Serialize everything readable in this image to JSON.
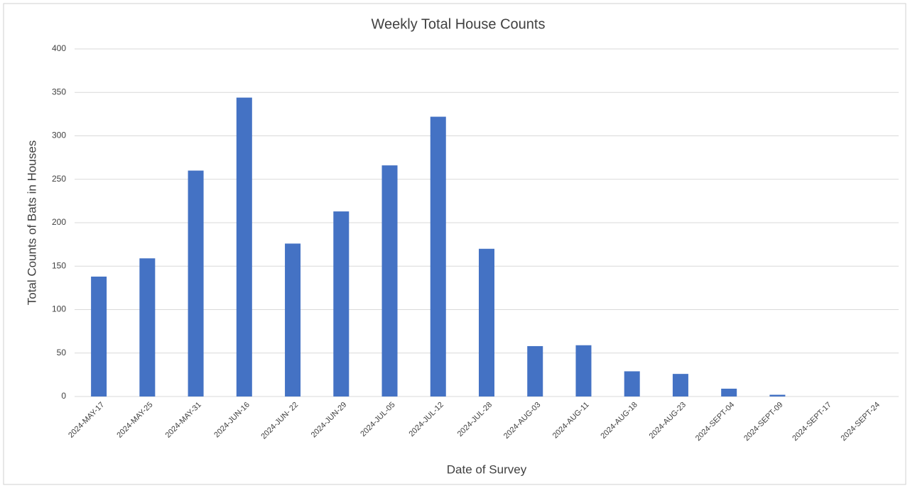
{
  "chart_data": {
    "type": "bar",
    "title": "Weekly Total House Counts",
    "x_label": "Date of Survey",
    "y_label": "Total Counts of Bats in Houses",
    "categories": [
      "2024-MAY-17",
      "2024-MAY-25",
      "2024-MAY-31",
      "2024-JUN-16",
      "2024-JUN- 22",
      "2024-JUN-29",
      "2024-JUL-05",
      "2024-JUL-12",
      "2024-JUL-28",
      "2024-AUG-03",
      "2024-AUG-11",
      "2024-AUG-18",
      "2024-AUG-23",
      "2024-SEPT-04",
      "2024-SEPT-09",
      "2024-SEPT-17",
      "2024-SEPT-24"
    ],
    "values": [
      138,
      159,
      260,
      344,
      176,
      213,
      266,
      322,
      170,
      58,
      59,
      29,
      26,
      9,
      2,
      0,
      0
    ],
    "color": "#4472c4",
    "ylim": [
      0,
      400
    ],
    "yticks": [
      0,
      50,
      100,
      150,
      200,
      250,
      300,
      350,
      400
    ],
    "grid": true
  }
}
